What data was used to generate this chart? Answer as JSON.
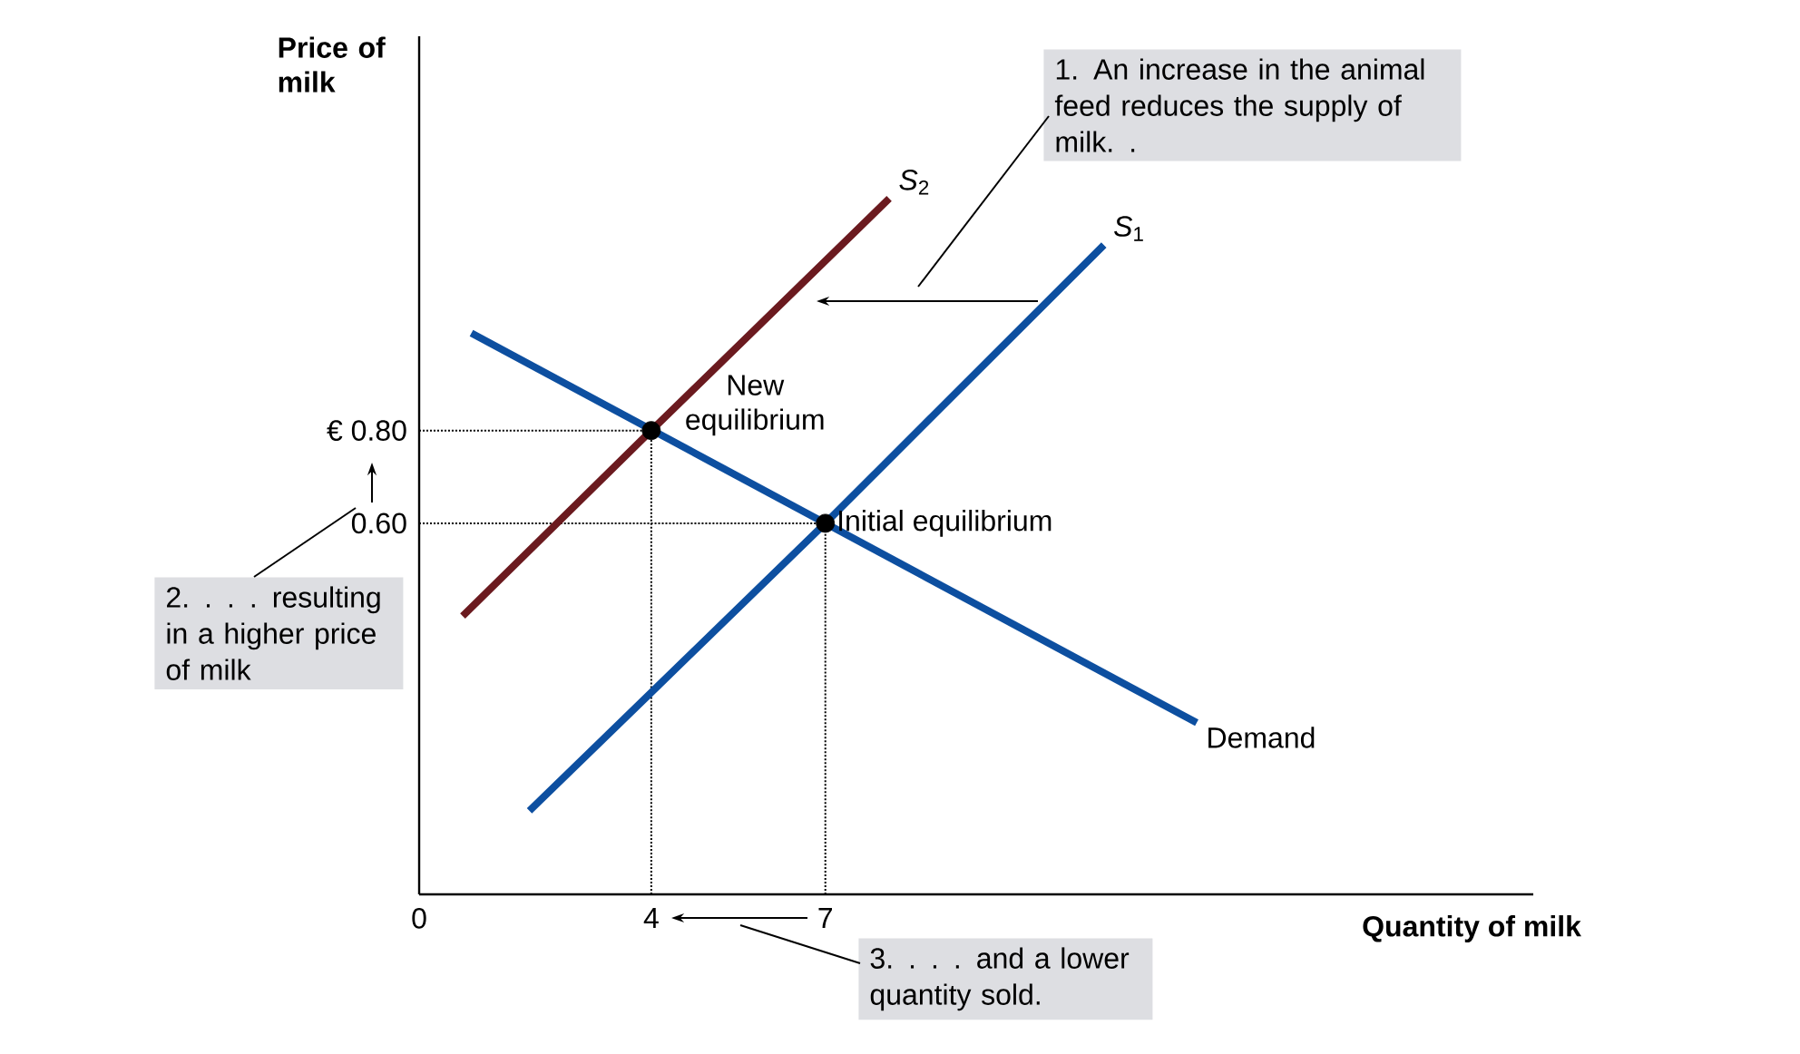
{
  "chart_data": {
    "type": "line",
    "xlabel": "Quantity of milk",
    "ylabel": "Price of milk",
    "xlim": [
      0,
      19.2
    ],
    "ylim": [
      -0.2,
      1.65
    ],
    "xticks": [
      0,
      4,
      7
    ],
    "yticks": [
      {
        "value": 0.6,
        "label": "0.60"
      },
      {
        "value": 0.8,
        "label": "€ 0.80"
      }
    ],
    "series": [
      {
        "name": "*S*$_{2}$",
        "color": "#6b1a1f",
        "x": [
          0.75,
          4,
          8.1
        ],
        "values": [
          0.4,
          0.8,
          1.3
        ]
      },
      {
        "name": "*S*$_{1}$",
        "color": "#0d4fa0",
        "x": [
          1.9,
          7,
          11.8
        ],
        "values": [
          -0.02,
          0.6,
          1.2
        ]
      },
      {
        "name": "Demand",
        "color": "#0d4fa0",
        "x": [
          0.9,
          13.4
        ],
        "values": [
          1.01,
          0.17
        ]
      },
      {
        "type": "scatter",
        "color": "#000000",
        "marker": "circle",
        "x": [
          4,
          7
        ],
        "values": [
          0.8,
          0.6
        ]
      }
    ],
    "ref_lines": [
      {
        "axis": "x",
        "value": 4,
        "color": "#000000",
        "line_style": "dotted"
      },
      {
        "axis": "x",
        "value": 7,
        "color": "#000000",
        "line_style": "dotted"
      },
      {
        "axis": "y",
        "value": 0.8,
        "color": "#000000",
        "line_style": "dotted"
      },
      {
        "axis": "y",
        "value": 0.6,
        "color": "#000000",
        "line_style": "dotted"
      }
    ],
    "annotations": [
      {
        "text": "New equilibrium",
        "x": 4,
        "y": 0.8
      },
      {
        "text": "Initial equilibrium",
        "x": 7,
        "y": 0.6
      },
      "1. An increase in the animal feed reduces the supply of milk. .",
      "2. . . . resulting in a higher price of milk",
      "3. . . . and a lower quantity sold."
    ]
  }
}
